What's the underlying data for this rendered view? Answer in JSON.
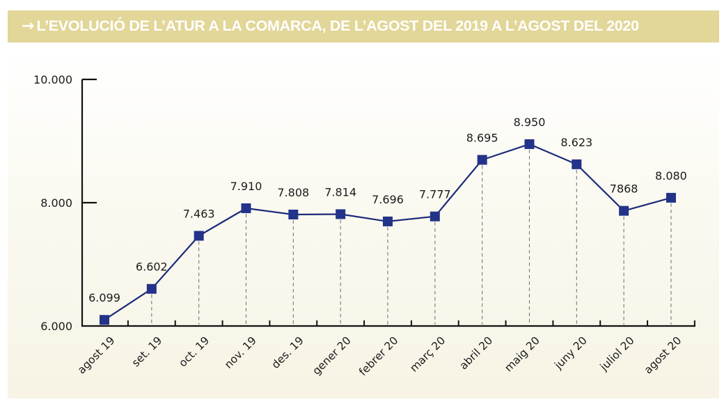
{
  "header": {
    "arrow_icon": "→",
    "title": "L’EVOLUCIÓ DE L’ATUR A LA COMARCA, DE L’AGOST DEL 2019 A L’AGOST DEL 2020"
  },
  "colors": {
    "header_bg": "#e2d698",
    "header_text": "#ffffff",
    "series_line": "#1c2a7a",
    "marker": "#233389",
    "axis": "#111111",
    "dropline": "#777777"
  },
  "chart_data": {
    "type": "line",
    "title": "L’EVOLUCIÓ DE L’ATUR A LA COMARCA, DE L’AGOST DEL 2019 A L’AGOST DEL 2020",
    "xlabel": "",
    "ylabel": "",
    "ylim": [
      6000,
      10000
    ],
    "yticks": [
      6000,
      8000,
      10000
    ],
    "ytick_labels": [
      "6.000",
      "8.000",
      "10.000"
    ],
    "grid": false,
    "legend": "none",
    "categories": [
      "agost 19",
      "set. 19",
      "oct. 19",
      "nov. 19",
      "des. 19",
      "gener 20",
      "febrer 20",
      "març 20",
      "abril 20",
      "maig 20",
      "juny 20",
      "juliol 20",
      "agost 20"
    ],
    "series": [
      {
        "name": "Atur",
        "values": [
          6099,
          6602,
          7463,
          7910,
          7808,
          7814,
          7696,
          7777,
          8695,
          8950,
          8623,
          7868,
          8080
        ],
        "labels": [
          "6.099",
          "6.602",
          "7.463",
          "7.910",
          "7.808",
          "7.814",
          "7.696",
          "7.777",
          "8.695",
          "8.950",
          "8.623",
          "7868",
          "8.080"
        ]
      }
    ]
  }
}
